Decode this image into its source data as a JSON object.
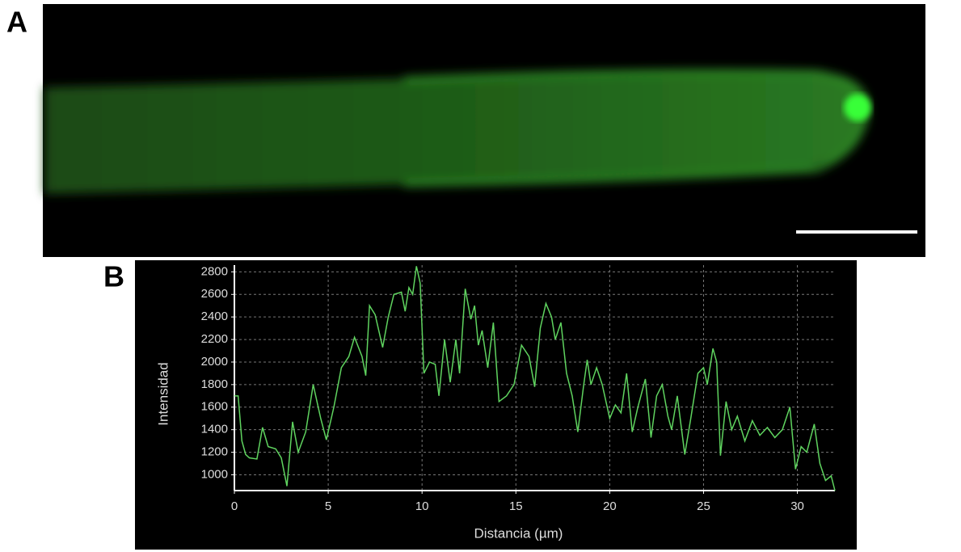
{
  "panel_labels": [
    "A",
    "B"
  ],
  "chart_data": {
    "type": "line",
    "x_label": "Distancia (µm)",
    "y_label": "Intensidad",
    "x": [
      0,
      0.2,
      0.4,
      0.6,
      0.8,
      1.2,
      1.5,
      1.8,
      2.2,
      2.5,
      2.8,
      3.1,
      3.4,
      3.8,
      4.2,
      4.6,
      4.9,
      5.3,
      5.7,
      6.1,
      6.4,
      6.8,
      7.0,
      7.2,
      7.5,
      7.9,
      8.2,
      8.5,
      8.9,
      9.1,
      9.3,
      9.5,
      9.7,
      9.9,
      10.1,
      10.4,
      10.7,
      10.9,
      11.2,
      11.5,
      11.8,
      12.0,
      12.3,
      12.6,
      12.8,
      13.0,
      13.2,
      13.5,
      13.8,
      14.1,
      14.5,
      14.9,
      15.3,
      15.7,
      16.0,
      16.3,
      16.6,
      16.9,
      17.1,
      17.4,
      17.7,
      18.0,
      18.3,
      18.6,
      18.8,
      19.0,
      19.3,
      19.6,
      20.0,
      20.3,
      20.6,
      20.9,
      21.2,
      21.5,
      21.9,
      22.2,
      22.5,
      22.8,
      23.1,
      23.3,
      23.6,
      24.0,
      24.3,
      24.7,
      25.0,
      25.2,
      25.5,
      25.7,
      25.9,
      26.2,
      26.5,
      26.8,
      27.2,
      27.6,
      28.0,
      28.4,
      28.8,
      29.2,
      29.6,
      29.9,
      30.2,
      30.5,
      30.9,
      31.2,
      31.5,
      31.8,
      32.0
    ],
    "values": [
      1700,
      1700,
      1300,
      1180,
      1150,
      1140,
      1420,
      1250,
      1230,
      1150,
      900,
      1470,
      1200,
      1380,
      1800,
      1500,
      1310,
      1600,
      1950,
      2050,
      2220,
      2050,
      1880,
      2500,
      2420,
      2130,
      2400,
      2600,
      2620,
      2450,
      2660,
      2600,
      2850,
      2700,
      1900,
      2000,
      1980,
      1700,
      2200,
      1820,
      2200,
      1900,
      2650,
      2380,
      2500,
      2150,
      2280,
      1950,
      2350,
      1650,
      1700,
      1800,
      2150,
      2050,
      1780,
      2300,
      2520,
      2400,
      2200,
      2350,
      1900,
      1700,
      1380,
      1780,
      2020,
      1800,
      1950,
      1800,
      1500,
      1620,
      1550,
      1900,
      1380,
      1600,
      1850,
      1330,
      1700,
      1800,
      1520,
      1400,
      1700,
      1180,
      1480,
      1900,
      1950,
      1800,
      2120,
      2000,
      1170,
      1650,
      1400,
      1520,
      1300,
      1480,
      1350,
      1420,
      1330,
      1400,
      1600,
      1050,
      1250,
      1200,
      1450,
      1100,
      950,
      990,
      860
    ],
    "color": "#5fd35f",
    "xlim": [
      0,
      32
    ],
    "ylim": [
      860,
      2860
    ],
    "xticks": [
      0,
      5,
      10,
      15,
      20,
      25,
      30
    ],
    "yticks": [
      1000,
      1200,
      1400,
      1600,
      1800,
      2000,
      2200,
      2400,
      2600,
      2800
    ],
    "grid": true
  }
}
